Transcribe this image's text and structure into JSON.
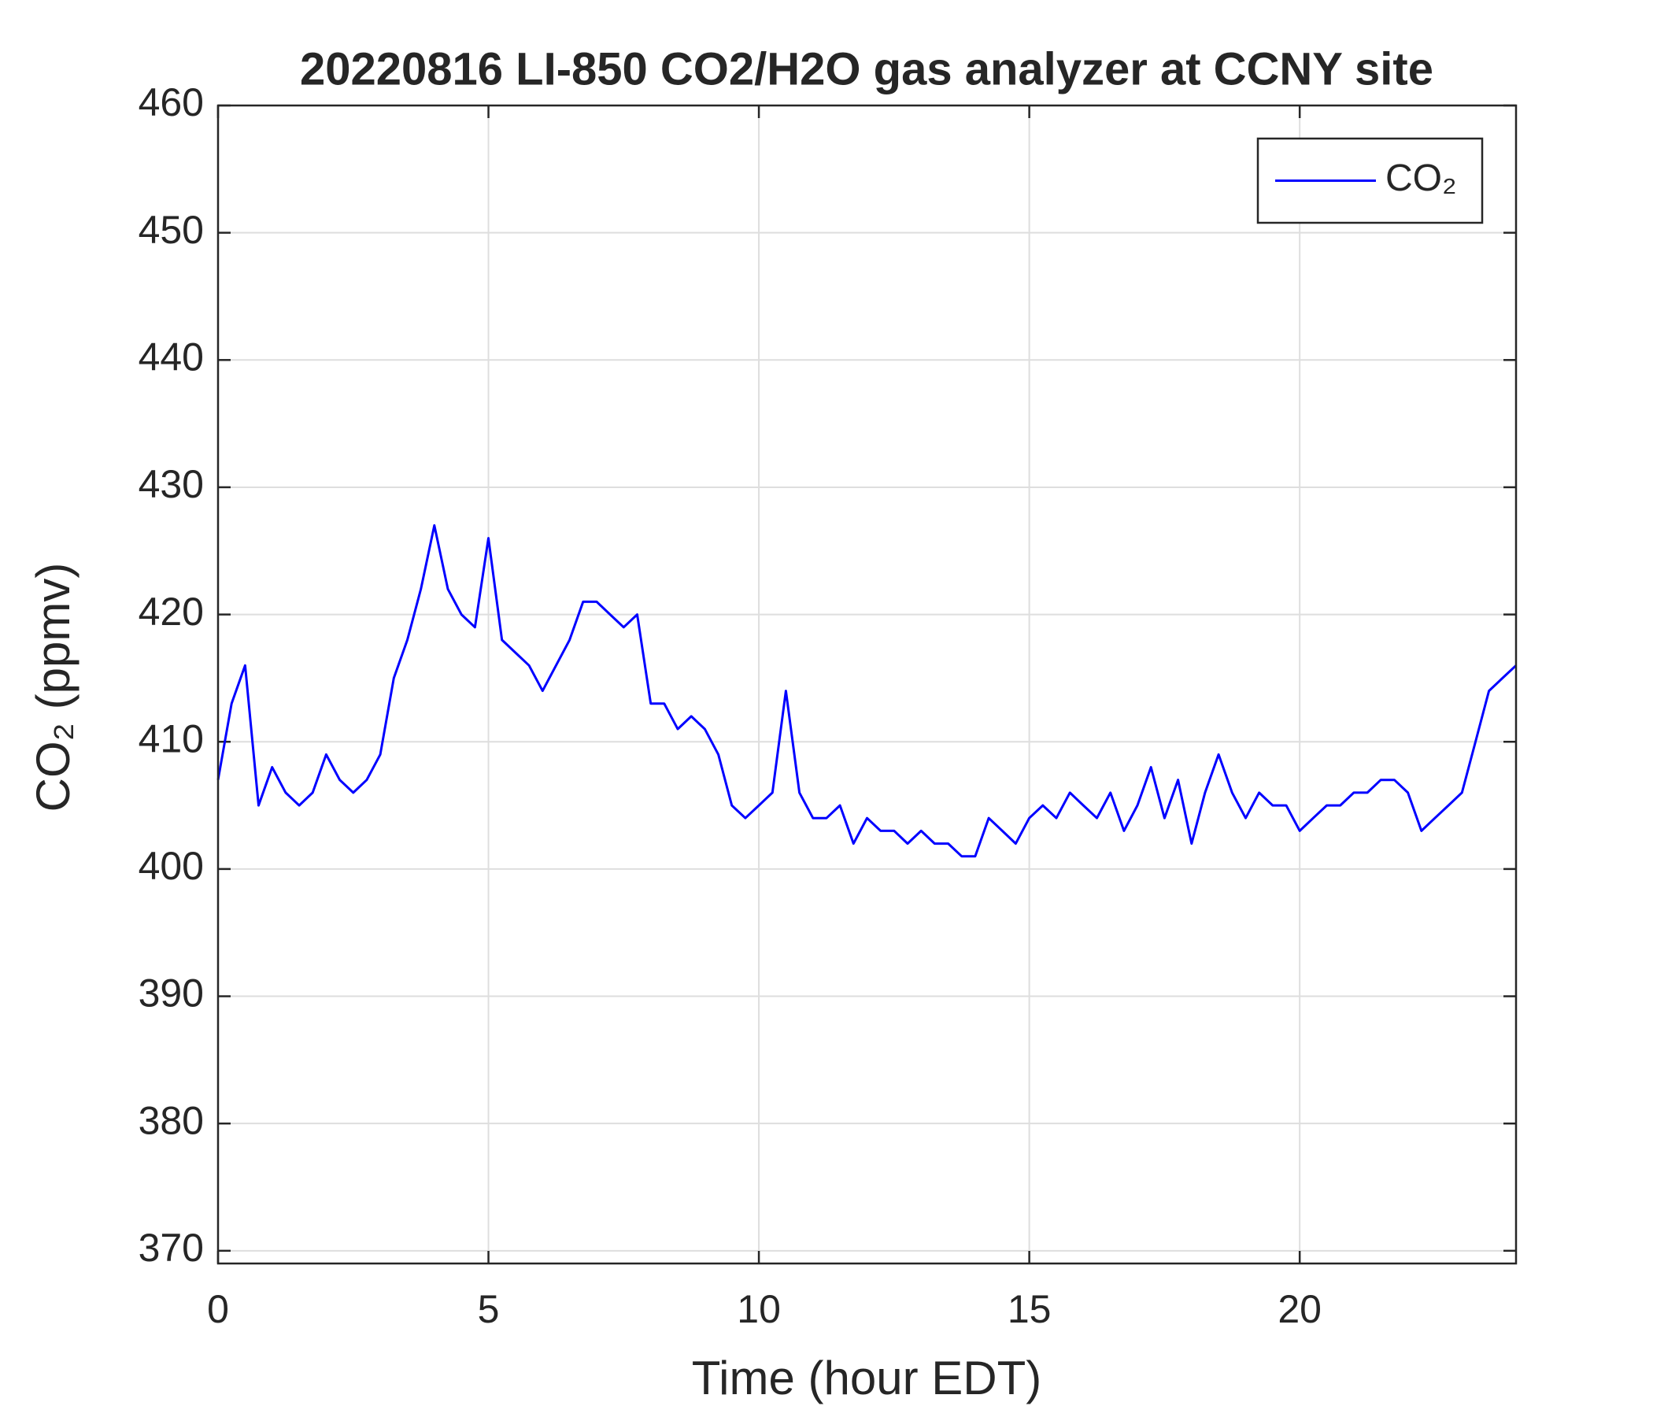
{
  "chart_data": {
    "type": "line",
    "title": "20220816 LI-850 CO2/H2O gas analyzer at CCNY site",
    "x_label": "Time (hour EDT)",
    "y_label": "CO₂ (ppmv)",
    "x": [
      0,
      0.25,
      0.5,
      0.75,
      1,
      1.25,
      1.5,
      1.75,
      2,
      2.25,
      2.5,
      2.75,
      3,
      3.25,
      3.5,
      3.75,
      4,
      4.25,
      4.5,
      4.75,
      5,
      5.25,
      5.5,
      5.75,
      6,
      6.25,
      6.5,
      6.75,
      7,
      7.25,
      7.5,
      7.75,
      8,
      8.25,
      8.5,
      8.75,
      9,
      9.25,
      9.5,
      9.75,
      10,
      10.25,
      10.5,
      10.75,
      11,
      11.25,
      11.5,
      11.75,
      12,
      12.25,
      12.5,
      12.75,
      13,
      13.25,
      13.5,
      13.75,
      14,
      14.25,
      14.5,
      14.75,
      15,
      15.25,
      15.5,
      15.75,
      16,
      16.25,
      16.5,
      16.75,
      17,
      17.25,
      17.5,
      17.75,
      18,
      18.25,
      18.5,
      18.75,
      19,
      19.25,
      19.5,
      19.75,
      20,
      20.25,
      20.5,
      20.75,
      21,
      21.25,
      21.5,
      21.75,
      22,
      22.25,
      22.5,
      22.75,
      23,
      23.25,
      23.5,
      23.75,
      24
    ],
    "series": [
      {
        "name": "CO₂",
        "color": "#0000ff",
        "values": [
          407,
          413,
          416,
          405,
          408,
          406,
          405,
          406,
          409,
          407,
          406,
          407,
          409,
          415,
          418,
          422,
          427,
          422,
          420,
          419,
          426,
          418,
          417,
          416,
          414,
          416,
          418,
          421,
          421,
          420,
          419,
          420,
          413,
          413,
          411,
          412,
          411,
          409,
          405,
          404,
          405,
          406,
          414,
          406,
          404,
          404,
          405,
          402,
          404,
          403,
          403,
          402,
          403,
          402,
          402,
          401,
          401,
          404,
          403,
          402,
          404,
          405,
          404,
          406,
          405,
          404,
          406,
          403,
          405,
          408,
          404,
          407,
          402,
          406,
          409,
          406,
          404,
          406,
          405,
          405,
          403,
          404,
          405,
          405,
          406,
          406,
          407,
          407,
          406,
          403,
          404,
          405,
          406,
          410,
          414,
          415,
          416
        ]
      }
    ],
    "xlim": [
      0,
      24
    ],
    "xticks": [
      0,
      5,
      10,
      15,
      20
    ],
    "ylim": [
      369,
      460
    ],
    "yticks": [
      370,
      380,
      390,
      400,
      410,
      420,
      430,
      440,
      450,
      460
    ],
    "grid": true,
    "legend": "upper right"
  }
}
